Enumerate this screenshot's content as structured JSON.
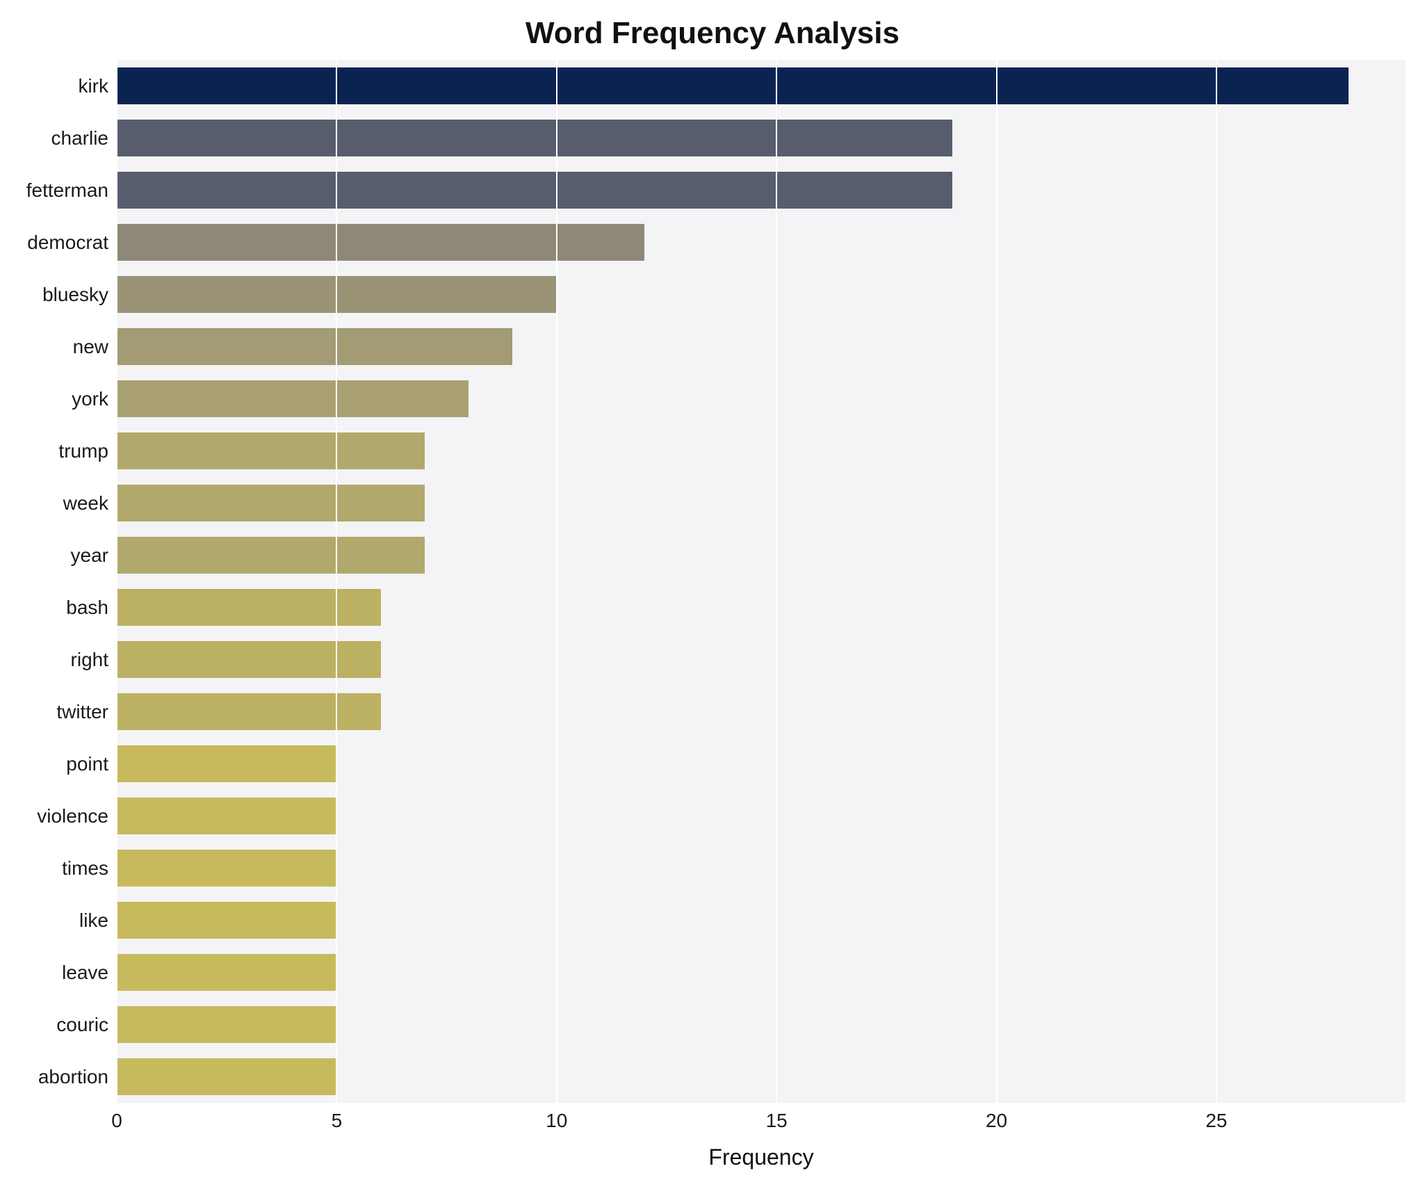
{
  "chart_data": {
    "type": "bar",
    "orientation": "horizontal",
    "title": "Word Frequency Analysis",
    "xlabel": "Frequency",
    "categories": [
      "kirk",
      "charlie",
      "fetterman",
      "democrat",
      "bluesky",
      "new",
      "york",
      "trump",
      "week",
      "year",
      "bash",
      "right",
      "twitter",
      "point",
      "violence",
      "times",
      "like",
      "leave",
      "couric",
      "abortion"
    ],
    "values": [
      28,
      19,
      19,
      12,
      10,
      9,
      8,
      7,
      7,
      7,
      6,
      6,
      6,
      5,
      5,
      5,
      5,
      5,
      5,
      5
    ],
    "xticks": [
      0,
      5,
      10,
      15,
      20,
      25
    ],
    "xlim": [
      0,
      29.3
    ],
    "grid": true,
    "legend": "none",
    "bar_colors": [
      "#0b2351",
      "#575d6d",
      "#575d6d",
      "#8d8878",
      "#9a9376",
      "#a29b74",
      "#a9a171",
      "#b1a96b",
      "#b1a96b",
      "#b1a96b",
      "#bcb163",
      "#bcb163",
      "#bcb163",
      "#c6ba5d",
      "#c6ba5d",
      "#c6ba5d",
      "#c6ba5d",
      "#c6ba5d",
      "#c6ba5d",
      "#c6ba5d"
    ],
    "plot_bg": "#f4f4f6",
    "grid_color": "#ffffff",
    "title_color": "#111111",
    "label_color": "#1a1a1a"
  }
}
